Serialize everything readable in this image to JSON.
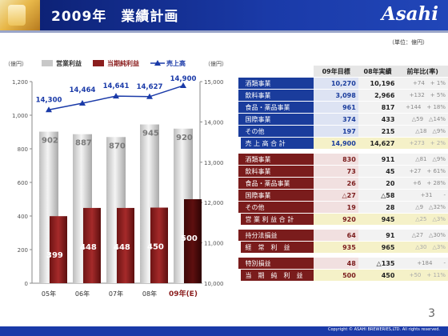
{
  "header": {
    "title": "2009年　業績計画",
    "logo": "Asahi"
  },
  "page_number": "3",
  "copyright": "Copyright © ASAHI BREWERIES,LTD. All rights reserved.",
  "colors": {
    "navy": "#1a3c9c",
    "maroon": "#7a1c1c",
    "operating_bar": "#d9d9d9",
    "net_bar": "#8b1e1e"
  },
  "chart_data": {
    "type": "bar",
    "categories": [
      "05年",
      "06年",
      "07年",
      "08年",
      "09年(E)"
    ],
    "series": [
      {
        "name": "営業利益",
        "type": "bar",
        "axis": "left",
        "values": [
          902,
          887,
          870,
          945,
          920
        ]
      },
      {
        "name": "当期純利益",
        "type": "bar",
        "axis": "left",
        "values": [
          399,
          448,
          448,
          450,
          500
        ]
      },
      {
        "name": "売上高",
        "type": "line",
        "axis": "right",
        "values": [
          14300,
          14464,
          14641,
          14627,
          14900
        ]
      }
    ],
    "y_left": {
      "label": "（億円）",
      "ylim": [
        0,
        1200
      ],
      "ticks": [
        "0",
        "200",
        "400",
        "600",
        "800",
        "1,000",
        "1,200"
      ]
    },
    "y_right": {
      "label": "（億円）",
      "ylim": [
        10000,
        15000
      ],
      "ticks": [
        "10,000",
        "11,000",
        "12,000",
        "13,000",
        "14,000",
        "15,000"
      ]
    },
    "line_labels": [
      "14,300",
      "14,464",
      "14,641",
      "14,627",
      "14,900"
    ],
    "grid": false,
    "legend": "top"
  },
  "table": {
    "unit": "（単位：億円）",
    "headers": [
      "09年目標",
      "08年実績",
      "前年比(率)"
    ],
    "sales_rows": [
      {
        "name": "酒類事業",
        "target": "10,270",
        "actual": "10,196",
        "change": "+74　+ 1%"
      },
      {
        "name": "飲料事業",
        "target": "3,098",
        "actual": "2,966",
        "change": "+132　+ 5%"
      },
      {
        "name": "食品・薬品事業",
        "target": "961",
        "actual": "817",
        "change": "+144　+ 18%"
      },
      {
        "name": "国際事業",
        "target": "374",
        "actual": "433",
        "change": "△59　△14%"
      },
      {
        "name": "その他",
        "target": "197",
        "actual": "215",
        "change": "△18　△9%"
      }
    ],
    "sales_total": {
      "name": "売 上 高 合 計",
      "target": "14,900",
      "actual": "14,627",
      "change": "+273　+ 2%"
    },
    "op_rows": [
      {
        "name": "酒類事業",
        "target": "830",
        "actual": "911",
        "change": "△81　△9%"
      },
      {
        "name": "飲料事業",
        "target": "73",
        "actual": "45",
        "change": "+27　+ 61%"
      },
      {
        "name": "食品・薬品事業",
        "target": "26",
        "actual": "20",
        "change": "+6　+ 28%"
      },
      {
        "name": "国際事業",
        "target": "△27",
        "actual": "△58",
        "change": "+31　　-"
      },
      {
        "name": "その他",
        "target": "19",
        "actual": "28",
        "change": "△9　△32%"
      }
    ],
    "op_total": {
      "name": "営 業 利 益 合 計",
      "target": "920",
      "actual": "945",
      "change": "△25　△3%"
    },
    "equity_row": {
      "name": "持分法損益",
      "target": "64",
      "actual": "91",
      "change": "△27　△30%"
    },
    "ordinary_total": {
      "name": "経　常　利　益",
      "target": "935",
      "actual": "965",
      "change": "△30　△3%"
    },
    "special_row": {
      "name": "特別損益",
      "target": "48",
      "actual": "△135",
      "change": "+184　　-"
    },
    "net_total": {
      "name": "当　期　純　利　益",
      "target": "500",
      "actual": "450",
      "change": "+50　+ 11%"
    }
  }
}
